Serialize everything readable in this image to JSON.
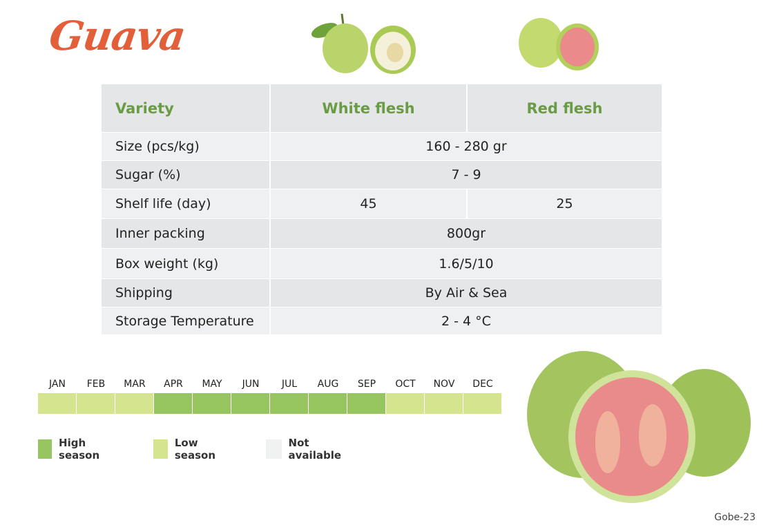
{
  "header": {
    "title": "Guava"
  },
  "table": {
    "columns": [
      "Variety",
      "White flesh",
      "Red flesh"
    ],
    "rows": [
      {
        "label": "Size (pcs/kg)",
        "values": [
          "160 - 280 gr"
        ]
      },
      {
        "label": "Sugar (%)",
        "values": [
          "7 - 9"
        ]
      },
      {
        "label": "Shelf life (day)",
        "values": [
          "45",
          "25"
        ]
      },
      {
        "label": "Inner packing",
        "values": [
          "800gr"
        ]
      },
      {
        "label": "Box weight (kg)",
        "values": [
          "1.6/5/10"
        ]
      },
      {
        "label": "Shipping",
        "values": [
          "By Air & Sea"
        ]
      },
      {
        "label": "Storage Temperature",
        "values": [
          "2 - 4 °C"
        ]
      }
    ]
  },
  "season": {
    "months": [
      {
        "label": "JAN",
        "status": "low"
      },
      {
        "label": "FEB",
        "status": "low"
      },
      {
        "label": "MAR",
        "status": "low"
      },
      {
        "label": "APR",
        "status": "high"
      },
      {
        "label": "MAY",
        "status": "high"
      },
      {
        "label": "JUN",
        "status": "high"
      },
      {
        "label": "JUL",
        "status": "high"
      },
      {
        "label": "AUG",
        "status": "high"
      },
      {
        "label": "SEP",
        "status": "high"
      },
      {
        "label": "OCT",
        "status": "low"
      },
      {
        "label": "NOV",
        "status": "low"
      },
      {
        "label": "DEC",
        "status": "low"
      }
    ],
    "legend": [
      {
        "key": "high",
        "label": "High season",
        "color": "#97c55f"
      },
      {
        "key": "low",
        "label": "Low season",
        "color": "#d5e48e"
      },
      {
        "key": "none",
        "label": "Not available",
        "color": "#f0f2f1"
      }
    ]
  },
  "footer": {
    "page": "Gobe-23"
  }
}
